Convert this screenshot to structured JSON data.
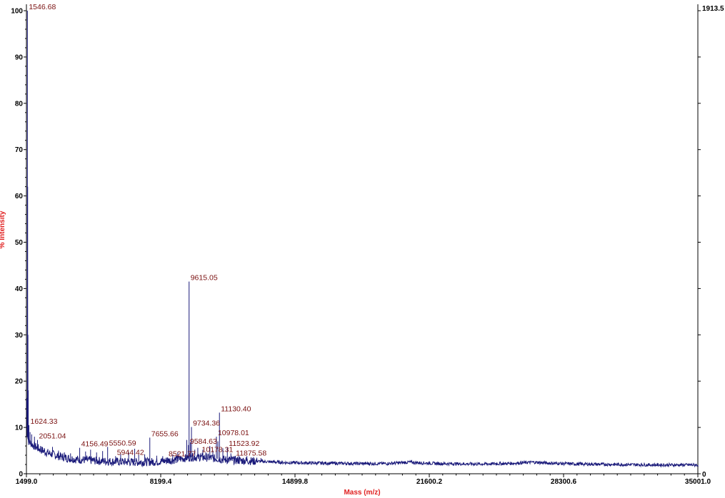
{
  "chart_data": {
    "type": "line",
    "title": "",
    "xlabel": "Mass (m/z)",
    "ylabel": "% Intensity",
    "xlim": [
      1499.0,
      35001.0
    ],
    "ylim": [
      0,
      100
    ],
    "x_ticks": [
      "1499.0",
      "8199.4",
      "14899.8",
      "21600.2",
      "28300.6",
      "35001.0"
    ],
    "y_ticks": [
      "0",
      "10",
      "20",
      "30",
      "40",
      "50",
      "60",
      "70",
      "80",
      "90",
      "100"
    ],
    "right_axis": {
      "top_label": "1913.5",
      "bottom_label": "0"
    },
    "line_color": "#1a1a7a",
    "label_color": "#7a1010",
    "axis_title_color": "#e02020",
    "peaks": [
      {
        "label": "1546.68",
        "x": 1546.68,
        "y": 100
      },
      {
        "label": "1624.33",
        "x": 1624.33,
        "y": 10.5
      },
      {
        "label": "2051.04",
        "x": 2051.04,
        "y": 7.3
      },
      {
        "label": "4156.49",
        "x": 4156.49,
        "y": 5.6
      },
      {
        "label": "5550.59",
        "x": 5550.59,
        "y": 5.8
      },
      {
        "label": "5944.42",
        "x": 5944.42,
        "y": 3.8
      },
      {
        "label": "7655.66",
        "x": 7655.66,
        "y": 7.8
      },
      {
        "label": "8521.77",
        "x": 8521.77,
        "y": 3.5
      },
      {
        "label": "9615.05",
        "x": 9615.05,
        "y": 41.5
      },
      {
        "label": "9734.36",
        "x": 9734.36,
        "y": 10.1
      },
      {
        "label": "9584.63",
        "x": 9584.63,
        "y": 6.2
      },
      {
        "label": "10178.31",
        "x": 10178.31,
        "y": 4.4
      },
      {
        "label": "11130.40",
        "x": 11130.4,
        "y": 13.2
      },
      {
        "label": "10978.01",
        "x": 10978.01,
        "y": 8.0
      },
      {
        "label": "11523.92",
        "x": 11523.92,
        "y": 5.7
      },
      {
        "label": "11875.58",
        "x": 11875.58,
        "y": 3.6
      }
    ],
    "baseline": [
      [
        1499,
        16
      ],
      [
        1520,
        9
      ],
      [
        1600,
        7
      ],
      [
        1800,
        6.2
      ],
      [
        2100,
        5.4
      ],
      [
        2500,
        4.6
      ],
      [
        3000,
        3.9
      ],
      [
        3500,
        3.4
      ],
      [
        4000,
        3.1
      ],
      [
        5000,
        2.8
      ],
      [
        6000,
        2.6
      ],
      [
        7000,
        2.5
      ],
      [
        8000,
        2.6
      ],
      [
        8700,
        2.9
      ],
      [
        9300,
        3.3
      ],
      [
        9700,
        3.6
      ],
      [
        10500,
        3.5
      ],
      [
        11500,
        3.0
      ],
      [
        12500,
        2.8
      ],
      [
        13500,
        2.6
      ],
      [
        14500,
        2.4
      ],
      [
        16000,
        2.3
      ],
      [
        18000,
        2.2
      ],
      [
        19500,
        2.2
      ],
      [
        20600,
        2.5
      ],
      [
        20900,
        2.4
      ],
      [
        22000,
        2.2
      ],
      [
        24000,
        2.1
      ],
      [
        25500,
        2.2
      ],
      [
        26800,
        2.5
      ],
      [
        27500,
        2.3
      ],
      [
        29000,
        2.1
      ],
      [
        31000,
        2.0
      ],
      [
        33000,
        1.9
      ],
      [
        35001,
        1.9
      ]
    ],
    "minor_spikes": [
      [
        1560,
        62
      ],
      [
        1575,
        30
      ],
      [
        1590,
        18
      ],
      [
        1680,
        9
      ],
      [
        1760,
        8.5
      ],
      [
        1900,
        8
      ],
      [
        2200,
        6
      ],
      [
        2400,
        5.5
      ],
      [
        2800,
        5.8
      ],
      [
        3100,
        5
      ],
      [
        3400,
        4.6
      ],
      [
        3700,
        4.4
      ],
      [
        4450,
        4.8
      ],
      [
        4700,
        5.2
      ],
      [
        5000,
        4.6
      ],
      [
        5300,
        4.9
      ],
      [
        6200,
        4.2
      ],
      [
        6600,
        4.6
      ],
      [
        6900,
        5.4
      ],
      [
        7100,
        4.1
      ],
      [
        7400,
        4.2
      ],
      [
        8000,
        3.9
      ],
      [
        8300,
        3.8
      ],
      [
        8800,
        4.1
      ],
      [
        9050,
        4.6
      ],
      [
        9500,
        7.3
      ],
      [
        9680,
        6.8
      ],
      [
        9900,
        5.2
      ],
      [
        10050,
        5.6
      ],
      [
        10300,
        5.2
      ],
      [
        10450,
        4.6
      ],
      [
        10650,
        6.0
      ],
      [
        10800,
        5.0
      ],
      [
        11050,
        7.0
      ],
      [
        11300,
        5.5
      ],
      [
        11700,
        4.4
      ],
      [
        12100,
        3.9
      ],
      [
        12500,
        3.8
      ],
      [
        13200,
        3.4
      ]
    ]
  }
}
